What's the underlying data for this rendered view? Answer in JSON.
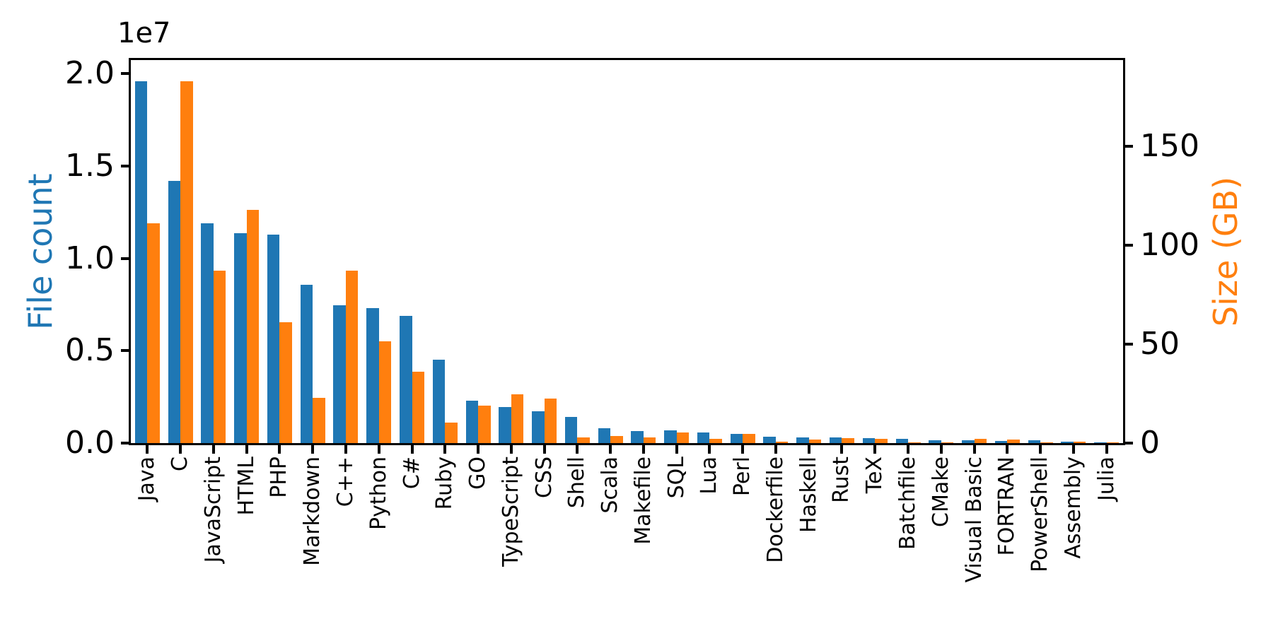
{
  "figure": {
    "offset_text": "1e7",
    "background": "#ffffff",
    "spine_color": "#000000"
  },
  "chart_data": {
    "type": "bar",
    "title": "",
    "xlabel": "",
    "grid": false,
    "legend": "none",
    "categories": [
      "Java",
      "C",
      "JavaScript",
      "HTML",
      "PHP",
      "Markdown",
      "C++",
      "Python",
      "C#",
      "Ruby",
      "GO",
      "TypeScript",
      "CSS",
      "Shell",
      "Scala",
      "Makefile",
      "SQL",
      "Lua",
      "Perl",
      "Dockerfile",
      "Haskell",
      "Rust",
      "TeX",
      "Batchfile",
      "CMake",
      "Visual Basic",
      "FORTRAN",
      "PowerShell",
      "Assembly",
      "Julia"
    ],
    "series": [
      {
        "name": "File count",
        "axis": "left",
        "color": "#1f77b4",
        "values": [
          19600000,
          14200000,
          11900000,
          11350000,
          11300000,
          8570000,
          7440000,
          7320000,
          6900000,
          4530000,
          2290000,
          1940000,
          1740000,
          1400000,
          810000,
          640000,
          670000,
          570000,
          500000,
          340000,
          290000,
          310000,
          250000,
          220000,
          170000,
          160000,
          100000,
          140000,
          90000,
          50000
        ]
      },
      {
        "name": "Size (GB)",
        "axis": "right",
        "color": "#ff7f0e",
        "values": [
          111,
          183,
          87,
          118,
          61,
          23,
          87,
          51.5,
          36,
          10.5,
          19,
          24.5,
          22.5,
          3,
          3.5,
          2.9,
          5.3,
          2.2,
          4.7,
          0.8,
          1.9,
          2.4,
          2.3,
          0.3,
          0.5,
          2.0,
          1.9,
          0.5,
          0.7,
          0.3
        ]
      }
    ],
    "left_axis": {
      "label": "File count",
      "label_color": "#1f77b4",
      "unit_multiplier_text": "1e7",
      "tick_labels": [
        "0.0",
        "0.5",
        "1.0",
        "1.5",
        "2.0"
      ],
      "tick_values": [
        0,
        5000000,
        10000000,
        15000000,
        20000000
      ],
      "ylim": [
        0,
        20730000
      ]
    },
    "right_axis": {
      "label": "Size (GB)",
      "label_color": "#ff7f0e",
      "tick_labels": [
        "0",
        "50",
        "100",
        "150"
      ],
      "tick_values": [
        0,
        50,
        100,
        150
      ],
      "ylim": [
        0,
        193.6
      ]
    }
  }
}
